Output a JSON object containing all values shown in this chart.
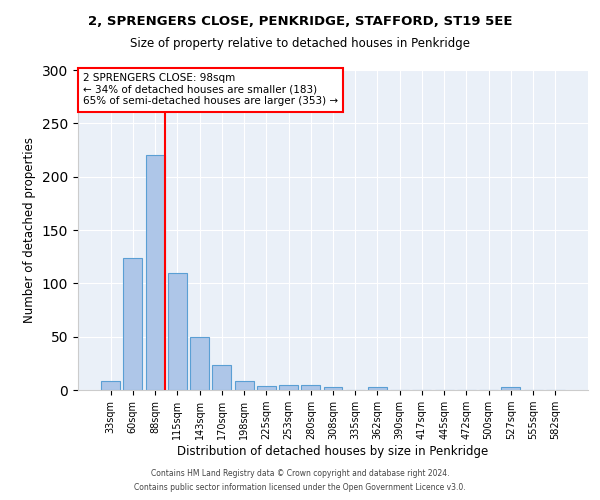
{
  "title1": "2, SPRENGERS CLOSE, PENKRIDGE, STAFFORD, ST19 5EE",
  "title2": "Size of property relative to detached houses in Penkridge",
  "xlabel": "Distribution of detached houses by size in Penkridge",
  "ylabel": "Number of detached properties",
  "bar_labels": [
    "33sqm",
    "60sqm",
    "88sqm",
    "115sqm",
    "143sqm",
    "170sqm",
    "198sqm",
    "225sqm",
    "253sqm",
    "280sqm",
    "308sqm",
    "335sqm",
    "362sqm",
    "390sqm",
    "417sqm",
    "445sqm",
    "472sqm",
    "500sqm",
    "527sqm",
    "555sqm",
    "582sqm"
  ],
  "bar_values": [
    8,
    124,
    220,
    110,
    50,
    23,
    8,
    4,
    5,
    5,
    3,
    0,
    3,
    0,
    0,
    0,
    0,
    0,
    3,
    0,
    0
  ],
  "bar_color": "#aec6e8",
  "bar_edge_color": "#5a9fd4",
  "vline_color": "red",
  "annotation_text": "2 SPRENGERS CLOSE: 98sqm\n← 34% of detached houses are smaller (183)\n65% of semi-detached houses are larger (353) →",
  "annotation_box_color": "white",
  "annotation_box_edge_color": "red",
  "ylim": [
    0,
    300
  ],
  "yticks": [
    0,
    50,
    100,
    150,
    200,
    250,
    300
  ],
  "bg_color": "#eaf0f8",
  "footnote1": "Contains HM Land Registry data © Crown copyright and database right 2024.",
  "footnote2": "Contains public sector information licensed under the Open Government Licence v3.0."
}
